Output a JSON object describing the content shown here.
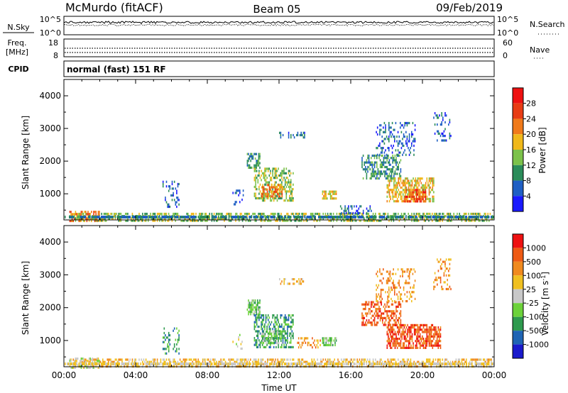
{
  "header": {
    "station": "McMurdo (fitACF)",
    "beam": "Beam 05",
    "date": "09/Feb/2019",
    "mode": "normal (fast) 151 RF"
  },
  "panels": {
    "nsky_label": "N.Sky",
    "nsearch_label": "N.Search",
    "freq_label": "Freq.",
    "freq_unit": "[MHz]",
    "nave_label": "Nave",
    "cpid_label": "CPID",
    "nsky_ticks": [
      "10^5",
      "10^0"
    ],
    "nsearch_ticks": [
      "10^5",
      "10^0"
    ],
    "freq_ticks": [
      "18",
      "8"
    ],
    "nave_ticks": [
      "60",
      "0"
    ]
  },
  "chart_data": [
    {
      "type": "heatmap",
      "title": "",
      "xlabel": "",
      "ylabel": "Slant Range [km]",
      "xlim": [
        0,
        24
      ],
      "ylim": [
        200,
        4500
      ],
      "yticks": [
        1000,
        2000,
        3000,
        4000
      ],
      "colorbar": {
        "label": "Power [dB]",
        "ticks": [
          "4",
          "8",
          "12",
          "16",
          "20",
          "24",
          "28"
        ],
        "colors": [
          "#1a1aff",
          "#1f5fc4",
          "#2b8c5a",
          "#7cc24a",
          "#f0b81a",
          "#f07a1a",
          "#e83c14",
          "#ee1111"
        ]
      },
      "regions": [
        {
          "t0": 0.3,
          "t1": 23.9,
          "r0": 200,
          "r1": 420,
          "level": 3,
          "density": 0.55
        },
        {
          "t0": 0.3,
          "t1": 2.0,
          "r0": 200,
          "r1": 480,
          "level": 5,
          "density": 0.5
        },
        {
          "t0": 10.2,
          "t1": 10.9,
          "r0": 1800,
          "r1": 2250,
          "level": 2,
          "density": 0.65
        },
        {
          "t0": 10.6,
          "t1": 12.8,
          "r0": 800,
          "r1": 1800,
          "level": 3,
          "density": 0.5
        },
        {
          "t0": 11.0,
          "t1": 12.2,
          "r0": 900,
          "r1": 1300,
          "level": 5,
          "density": 0.55
        },
        {
          "t0": 12.0,
          "t1": 13.4,
          "r0": 2700,
          "r1": 2900,
          "level": 1,
          "density": 0.35
        },
        {
          "t0": 14.4,
          "t1": 15.2,
          "r0": 850,
          "r1": 1100,
          "level": 4,
          "density": 0.7
        },
        {
          "t0": 15.4,
          "t1": 17.2,
          "r0": 400,
          "r1": 650,
          "level": 1,
          "density": 0.25
        },
        {
          "t0": 16.6,
          "t1": 18.8,
          "r0": 1500,
          "r1": 2200,
          "level": 2,
          "density": 0.5
        },
        {
          "t0": 17.4,
          "t1": 19.6,
          "r0": 2200,
          "r1": 3200,
          "level": 1,
          "density": 0.28
        },
        {
          "t0": 18.0,
          "t1": 20.6,
          "r0": 800,
          "r1": 1500,
          "level": 4,
          "density": 0.6
        },
        {
          "t0": 19.0,
          "t1": 20.2,
          "r0": 800,
          "r1": 1150,
          "level": 6,
          "density": 0.6
        },
        {
          "t0": 20.6,
          "t1": 21.6,
          "r0": 2600,
          "r1": 3500,
          "level": 1,
          "density": 0.25
        },
        {
          "t0": 5.5,
          "t1": 6.4,
          "r0": 600,
          "r1": 1400,
          "level": 1,
          "density": 0.2
        },
        {
          "t0": 9.4,
          "t1": 10.0,
          "r0": 700,
          "r1": 1200,
          "level": 1,
          "density": 0.18
        }
      ]
    },
    {
      "type": "heatmap",
      "title": "",
      "xlabel": "Time UT",
      "ylabel": "Slant Range [km]",
      "xlim": [
        0,
        24
      ],
      "ylim": [
        200,
        4500
      ],
      "xticks": [
        "00:00",
        "04:00",
        "08:00",
        "12:00",
        "16:00",
        "20:00",
        "00:00"
      ],
      "yticks": [
        1000,
        2000,
        3000,
        4000
      ],
      "colorbar": {
        "label": "Velocity [m s^-1]",
        "ticks": [
          "1000",
          "500",
          "100",
          "25",
          "-25",
          "-100",
          "-500",
          "-1000"
        ],
        "colors": [
          "#1a1acc",
          "#1f64b4",
          "#2e9a4e",
          "#6cd23a",
          "#c8c8c8",
          "#f0c020",
          "#f08a1e",
          "#ee5a14",
          "#ee1111"
        ]
      },
      "regions": [
        {
          "t0": 0.3,
          "t1": 23.9,
          "r0": 200,
          "r1": 450,
          "level": 5,
          "density": 0.5
        },
        {
          "t0": 0.3,
          "t1": 2.0,
          "r0": 200,
          "r1": 480,
          "level": 4,
          "density": 0.5
        },
        {
          "t0": 10.2,
          "t1": 10.9,
          "r0": 1800,
          "r1": 2250,
          "level": 3,
          "density": 0.6
        },
        {
          "t0": 10.6,
          "t1": 12.8,
          "r0": 800,
          "r1": 1800,
          "level": 2,
          "density": 0.5
        },
        {
          "t0": 11.0,
          "t1": 12.2,
          "r0": 900,
          "r1": 1300,
          "level": 3,
          "density": 0.55
        },
        {
          "t0": 12.0,
          "t1": 13.4,
          "r0": 2700,
          "r1": 2900,
          "level": 5,
          "density": 0.35
        },
        {
          "t0": 14.4,
          "t1": 15.2,
          "r0": 850,
          "r1": 1100,
          "level": 3,
          "density": 0.7
        },
        {
          "t0": 13.0,
          "t1": 14.3,
          "r0": 800,
          "r1": 1100,
          "level": 6,
          "density": 0.3
        },
        {
          "t0": 16.6,
          "t1": 18.8,
          "r0": 1500,
          "r1": 2200,
          "level": 7,
          "density": 0.5
        },
        {
          "t0": 17.4,
          "t1": 19.6,
          "r0": 2200,
          "r1": 3200,
          "level": 6,
          "density": 0.28
        },
        {
          "t0": 18.0,
          "t1": 21.0,
          "r0": 800,
          "r1": 1500,
          "level": 7,
          "density": 0.65
        },
        {
          "t0": 20.6,
          "t1": 21.6,
          "r0": 2600,
          "r1": 3500,
          "level": 6,
          "density": 0.25
        },
        {
          "t0": 5.5,
          "t1": 6.4,
          "r0": 600,
          "r1": 1400,
          "level": 2,
          "density": 0.2
        },
        {
          "t0": 9.4,
          "t1": 10.0,
          "r0": 700,
          "r1": 1200,
          "level": 4,
          "density": 0.18
        }
      ]
    }
  ]
}
